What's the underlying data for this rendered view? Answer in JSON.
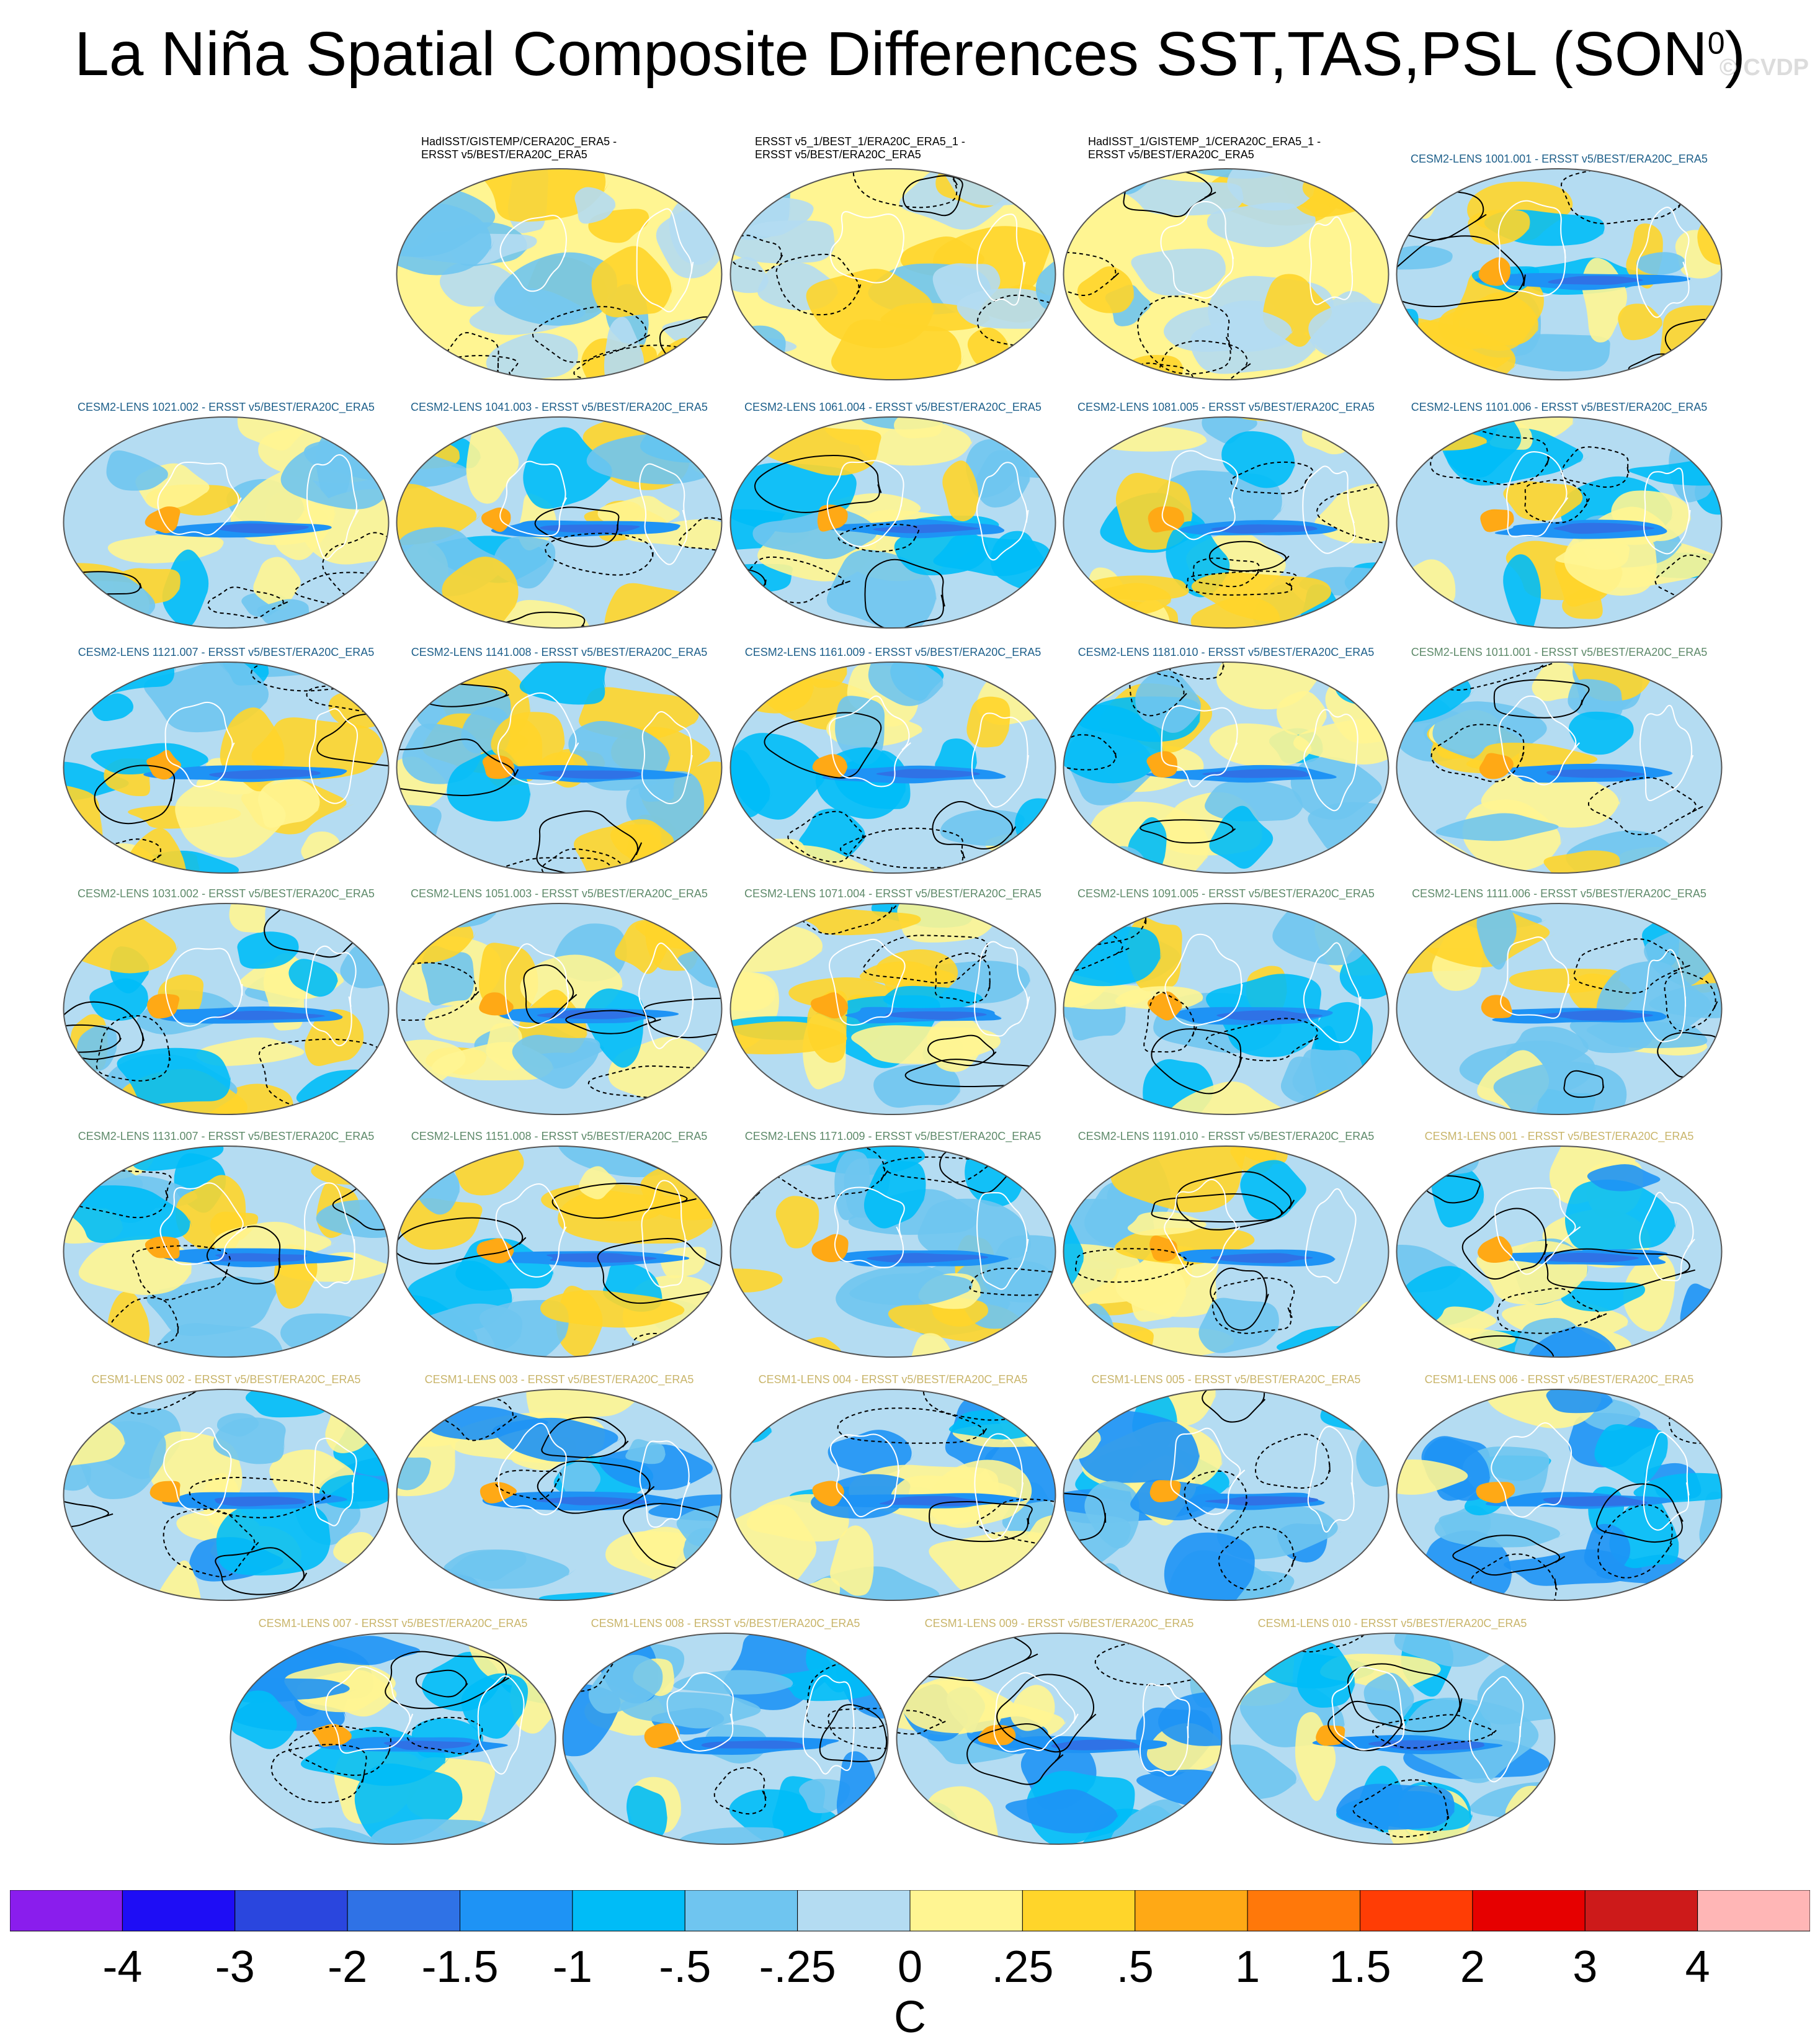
{
  "figure_title": "La Niña Spatial Composite Differences SST,TAS,PSL (SON",
  "figure_title_sup": "0",
  "figure_title_end": ")",
  "watermark": "© CVDP",
  "chart_data": {
    "type": "heatmap",
    "title": "La Niña Spatial Composite Differences SST,TAS,PSL (SON0)",
    "projection": "global robinson map panels, filled colors = SST/TAS difference, black contours = PSL difference (dashed negative)",
    "colorbar": {
      "unit": "C",
      "tick_labels": [
        "-4",
        "-3",
        "-2",
        "-1.5",
        "-1",
        "-.5",
        "-.25",
        "0",
        ".25",
        ".5",
        "1",
        "1.5",
        "2",
        "3",
        "4"
      ],
      "colors": [
        "#8a1ded",
        "#1e0df5",
        "#2a46de",
        "#2f72e6",
        "#1e93f5",
        "#00bcf7",
        "#6fc5f0",
        "#b4dcf2",
        "#fff592",
        "#ffd52a",
        "#ffa915",
        "#ff780a",
        "#ff3d05",
        "#e60000",
        "#cd1a1a",
        "#ffb6b6"
      ]
    },
    "panels": [
      {
        "label": "HadISST/GISTEMP/CERA20C_ERA5 -",
        "label2": "ERSST v5/BEST/ERA20C_ERA5",
        "style": "obs",
        "color": "#000000"
      },
      {
        "label": "ERSST v5_1/BEST_1/ERA20C_ERA5_1 -",
        "label2": "ERSST v5/BEST/ERA20C_ERA5",
        "style": "obs",
        "color": "#000000"
      },
      {
        "label": "HadISST_1/GISTEMP_1/CERA20C_ERA5_1 -",
        "label2": "ERSST v5/BEST/ERA20C_ERA5",
        "style": "obs",
        "color": "#000000"
      },
      {
        "label": "CESM2-LENS 1001.001 - ERSST v5/BEST/ERA20C_ERA5",
        "label2": "",
        "style": "cesm2",
        "color": "#1d5f8a"
      },
      {
        "label": "CESM2-LENS 1021.002 - ERSST v5/BEST/ERA20C_ERA5",
        "label2": "",
        "style": "cesm2",
        "color": "#1d5f8a"
      },
      {
        "label": "CESM2-LENS 1041.003 - ERSST v5/BEST/ERA20C_ERA5",
        "label2": "",
        "style": "cesm2",
        "color": "#1d5f8a"
      },
      {
        "label": "CESM2-LENS 1061.004 - ERSST v5/BEST/ERA20C_ERA5",
        "label2": "",
        "style": "cesm2",
        "color": "#1d5f8a"
      },
      {
        "label": "CESM2-LENS 1081.005 - ERSST v5/BEST/ERA20C_ERA5",
        "label2": "",
        "style": "cesm2",
        "color": "#1d5f8a"
      },
      {
        "label": "CESM2-LENS 1101.006 - ERSST v5/BEST/ERA20C_ERA5",
        "label2": "",
        "style": "cesm2",
        "color": "#1d5f8a"
      },
      {
        "label": "CESM2-LENS 1121.007 - ERSST v5/BEST/ERA20C_ERA5",
        "label2": "",
        "style": "cesm2",
        "color": "#1d5f8a"
      },
      {
        "label": "CESM2-LENS 1141.008 - ERSST v5/BEST/ERA20C_ERA5",
        "label2": "",
        "style": "cesm2",
        "color": "#1d5f8a"
      },
      {
        "label": "CESM2-LENS 1161.009 - ERSST v5/BEST/ERA20C_ERA5",
        "label2": "",
        "style": "cesm2",
        "color": "#1d5f8a"
      },
      {
        "label": "CESM2-LENS 1181.010 - ERSST v5/BEST/ERA20C_ERA5",
        "label2": "",
        "style": "cesm2",
        "color": "#1d5f8a"
      },
      {
        "label": "CESM2-LENS 1011.001 - ERSST v5/BEST/ERA20C_ERA5",
        "label2": "",
        "style": "cesm2b",
        "color": "#5e8a6a"
      },
      {
        "label": "CESM2-LENS 1031.002 - ERSST v5/BEST/ERA20C_ERA5",
        "label2": "",
        "style": "cesm2b",
        "color": "#5e8a6a"
      },
      {
        "label": "CESM2-LENS 1051.003 - ERSST v5/BEST/ERA20C_ERA5",
        "label2": "",
        "style": "cesm2b",
        "color": "#5e8a6a"
      },
      {
        "label": "CESM2-LENS 1071.004 - ERSST v5/BEST/ERA20C_ERA5",
        "label2": "",
        "style": "cesm2b",
        "color": "#5e8a6a"
      },
      {
        "label": "CESM2-LENS 1091.005 - ERSST v5/BEST/ERA20C_ERA5",
        "label2": "",
        "style": "cesm2b",
        "color": "#5e8a6a"
      },
      {
        "label": "CESM2-LENS 1111.006 - ERSST v5/BEST/ERA20C_ERA5",
        "label2": "",
        "style": "cesm2b",
        "color": "#5e8a6a"
      },
      {
        "label": "CESM2-LENS 1131.007 - ERSST v5/BEST/ERA20C_ERA5",
        "label2": "",
        "style": "cesm2b",
        "color": "#5e8a6a"
      },
      {
        "label": "CESM2-LENS 1151.008 - ERSST v5/BEST/ERA20C_ERA5",
        "label2": "",
        "style": "cesm2b",
        "color": "#5e8a6a"
      },
      {
        "label": "CESM2-LENS 1171.009 - ERSST v5/BEST/ERA20C_ERA5",
        "label2": "",
        "style": "cesm2b",
        "color": "#5e8a6a"
      },
      {
        "label": "CESM2-LENS 1191.010 - ERSST v5/BEST/ERA20C_ERA5",
        "label2": "",
        "style": "cesm2b",
        "color": "#5e8a6a"
      },
      {
        "label": "CESM1-LENS 001 - ERSST v5/BEST/ERA20C_ERA5",
        "label2": "",
        "style": "cesm1",
        "color": "#c9b56b"
      },
      {
        "label": "CESM1-LENS 002 - ERSST v5/BEST/ERA20C_ERA5",
        "label2": "",
        "style": "cesm1",
        "color": "#c9b56b"
      },
      {
        "label": "CESM1-LENS 003 - ERSST v5/BEST/ERA20C_ERA5",
        "label2": "",
        "style": "cesm1",
        "color": "#c9b56b"
      },
      {
        "label": "CESM1-LENS 004 - ERSST v5/BEST/ERA20C_ERA5",
        "label2": "",
        "style": "cesm1",
        "color": "#c9b56b"
      },
      {
        "label": "CESM1-LENS 005 - ERSST v5/BEST/ERA20C_ERA5",
        "label2": "",
        "style": "cesm1",
        "color": "#c9b56b"
      },
      {
        "label": "CESM1-LENS 006 - ERSST v5/BEST/ERA20C_ERA5",
        "label2": "",
        "style": "cesm1",
        "color": "#c9b56b"
      },
      {
        "label": "CESM1-LENS 007 - ERSST v5/BEST/ERA20C_ERA5",
        "label2": "",
        "style": "cesm1",
        "color": "#c9b56b"
      },
      {
        "label": "CESM1-LENS 008 - ERSST v5/BEST/ERA20C_ERA5",
        "label2": "",
        "style": "cesm1",
        "color": "#c9b56b"
      },
      {
        "label": "CESM1-LENS 009 - ERSST v5/BEST/ERA20C_ERA5",
        "label2": "",
        "style": "cesm1",
        "color": "#c9b56b"
      },
      {
        "label": "CESM1-LENS 010 - ERSST v5/BEST/ERA20C_ERA5",
        "label2": "",
        "style": "cesm1",
        "color": "#c9b56b"
      }
    ]
  }
}
